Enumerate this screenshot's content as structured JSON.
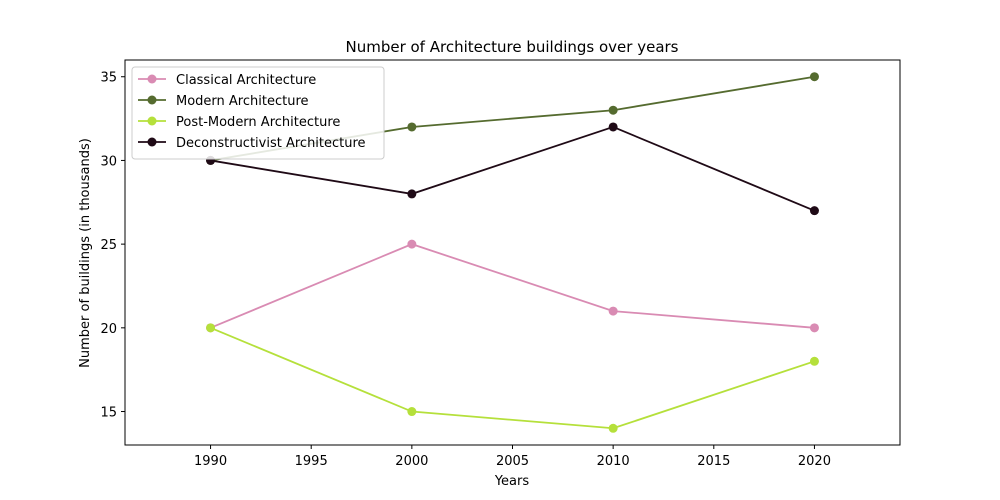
{
  "chart_data": {
    "type": "line",
    "title": "Number of Architecture buildings over years",
    "xlabel": "Years",
    "ylabel": "Number of buildings (in thousands)",
    "x": [
      1990,
      2000,
      2010,
      2020
    ],
    "xlim": [
      1985.75,
      2024.25
    ],
    "ylim": [
      13,
      36
    ],
    "xticks": [
      1990,
      1995,
      2000,
      2005,
      2010,
      2015,
      2020
    ],
    "yticks": [
      15,
      20,
      25,
      30,
      35
    ],
    "grid": false,
    "legend_position": "top-left",
    "series": [
      {
        "name": "Classical Architecture",
        "color": "#d98bb3",
        "values": [
          20,
          25,
          21,
          20
        ]
      },
      {
        "name": "Modern Architecture",
        "color": "#556b2f",
        "values": [
          30,
          32,
          33,
          35
        ]
      },
      {
        "name": "Post-Modern Architecture",
        "color": "#b5e03b",
        "values": [
          20,
          15,
          14,
          18
        ]
      },
      {
        "name": "Deconstructivist Architecture",
        "color": "#1f0a16",
        "values": [
          30,
          28,
          32,
          27
        ]
      }
    ]
  }
}
